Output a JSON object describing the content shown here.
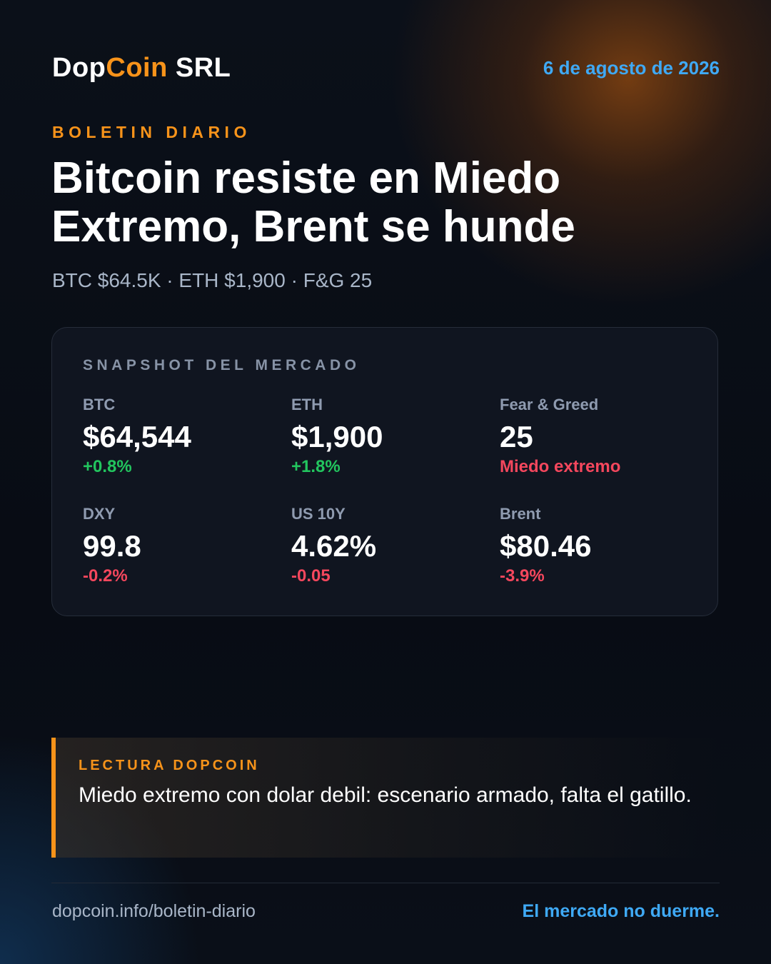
{
  "header": {
    "brand_part1": "Dop",
    "brand_part2": "Coin",
    "brand_part3": " SRL",
    "date": "6 de agosto de 2026"
  },
  "bulletin": {
    "kicker": "BOLETIN DIARIO",
    "headline": "Bitcoin resiste en Miedo Extremo, Brent se hunde",
    "subline": "BTC $64.5K · ETH $1,900 · F&G 25"
  },
  "snapshot": {
    "title": "SNAPSHOT DEL MERCADO",
    "metrics": [
      {
        "label": "BTC",
        "value": "$64,544",
        "change": "+0.8%",
        "trend": "positive"
      },
      {
        "label": "ETH",
        "value": "$1,900",
        "change": "+1.8%",
        "trend": "positive"
      },
      {
        "label": "Fear & Greed",
        "value": "25",
        "change": "Miedo extremo",
        "trend": "negative"
      },
      {
        "label": "DXY",
        "value": "99.8",
        "change": "-0.2%",
        "trend": "negative"
      },
      {
        "label": "US 10Y",
        "value": "4.62%",
        "change": "-0.05",
        "trend": "negative"
      },
      {
        "label": "Brent",
        "value": "$80.46",
        "change": "-3.9%",
        "trend": "negative"
      }
    ]
  },
  "reading": {
    "title": "LECTURA DOPCOIN",
    "text": "Miedo extremo con dolar debil: escenario armado, falta el gatillo."
  },
  "footer": {
    "url": "dopcoin.info/boletin-diario",
    "tagline": "El mercado no duerme."
  },
  "colors": {
    "accent_orange": "#f7931a",
    "accent_blue": "#3fa9f5",
    "positive": "#22c55e",
    "negative": "#f5475d",
    "background": "#0a0e16"
  }
}
